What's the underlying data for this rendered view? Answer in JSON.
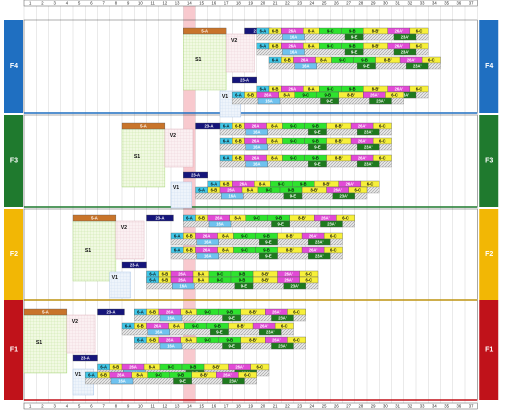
{
  "columns": [
    "1",
    "2",
    "3",
    "4",
    "5",
    "6",
    "7",
    "8",
    "9",
    "10",
    "11",
    "12",
    "13",
    "14",
    "15",
    "16",
    "17",
    "18",
    "19",
    "20",
    "21",
    "22",
    "23",
    "24",
    "25",
    "26",
    "27",
    "28",
    "29",
    "30",
    "31",
    "32",
    "33",
    "34",
    "35",
    "36",
    "37"
  ],
  "highlight_column": "14",
  "floors": [
    {
      "label": "F4",
      "color": "#1f6fc1"
    },
    {
      "label": "F3",
      "color": "#1f7a2e"
    },
    {
      "label": "F2",
      "color": "#f2b705"
    },
    {
      "label": "F1",
      "color": "#c0121a"
    }
  ],
  "zones": {
    "s1": "S1",
    "v2": "V2",
    "v1": "V1"
  },
  "task_labels": {
    "s_a": "5-A",
    "v_a": "23-A",
    "a6": "6-A",
    "b6": "6-B",
    "a26": "26A",
    "a8": "8-A",
    "c9": "9-C",
    "b9": "9-B",
    "bp8": "8-B'",
    "ap26": "26A'",
    "c6": "6-C",
    "a16": "16A",
    "e9": "9-E",
    "ap23": "23A'"
  },
  "colors": {
    "orange": "#c8742a",
    "navy": "#15157a",
    "cyan": "#3fc7e8",
    "magenta": "#e24ad6",
    "yellow": "#f7f03a",
    "green": "#2ee32e",
    "dark_green": "#1e7a1e",
    "light_blue": "#6fc2ef",
    "gray_hatch": "#c8c8c8"
  }
}
